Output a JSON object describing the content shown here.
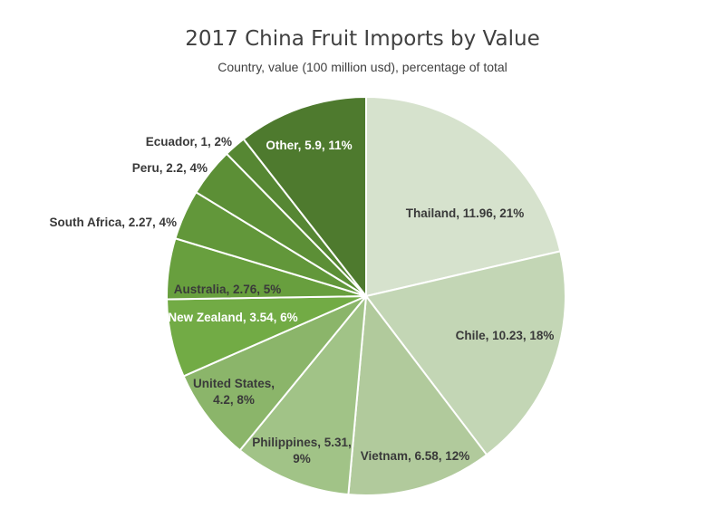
{
  "chart_data": {
    "type": "pie",
    "title": "2017 China Fruit Imports by Value",
    "subtitle": "Country, value (100 million usd), percentage of total",
    "slices": [
      {
        "country": "Thailand",
        "value": 11.96,
        "percent": 21,
        "label": "Thailand, 11.96, 21%",
        "color": "#d6e2cd"
      },
      {
        "country": "Chile",
        "value": 10.23,
        "percent": 18,
        "label": "Chile, 10.23, 18%",
        "color": "#c3d6b5"
      },
      {
        "country": "Vietnam",
        "value": 6.58,
        "percent": 12,
        "label": "Vietnam, 6.58, 12%",
        "color": "#b1ca9c"
      },
      {
        "country": "Philippines",
        "value": 5.31,
        "percent": 9,
        "label": "Philippines, 5.31, 9%",
        "color": "#a1c387",
        "lines": [
          "Philippines, 5.31,",
          "9%"
        ]
      },
      {
        "country": "United States",
        "value": 4.2,
        "percent": 8,
        "label": "United States, 4.2, 8%",
        "color": "#8bb56a",
        "lines": [
          "United States,",
          "4.2, 8%"
        ]
      },
      {
        "country": "New Zealand",
        "value": 3.54,
        "percent": 6,
        "label": "New Zealand, 3.54, 6%",
        "color": "#72ab45"
      },
      {
        "country": "Australia",
        "value": 2.76,
        "percent": 5,
        "label": "Australia, 2.76, 5%",
        "color": "#689f3e"
      },
      {
        "country": "South Africa",
        "value": 2.27,
        "percent": 4,
        "label": "South Africa, 2.27, 4%",
        "color": "#62973a"
      },
      {
        "country": "Peru",
        "value": 2.2,
        "percent": 4,
        "label": "Peru, 2.2, 4%",
        "color": "#5c8f36"
      },
      {
        "country": "Ecuador",
        "value": 1,
        "percent": 2,
        "label": "Ecuador, 1, 2%",
        "color": "#568733"
      },
      {
        "country": "Other",
        "value": 5.9,
        "percent": 11,
        "label": "Other, 5.9, 11%",
        "color": "#4e7a2e"
      }
    ],
    "start_angle": "12 o'clock",
    "direction": "clockwise",
    "label_color_dark": "#3a3a3a",
    "label_color_light": "#ffffff"
  }
}
